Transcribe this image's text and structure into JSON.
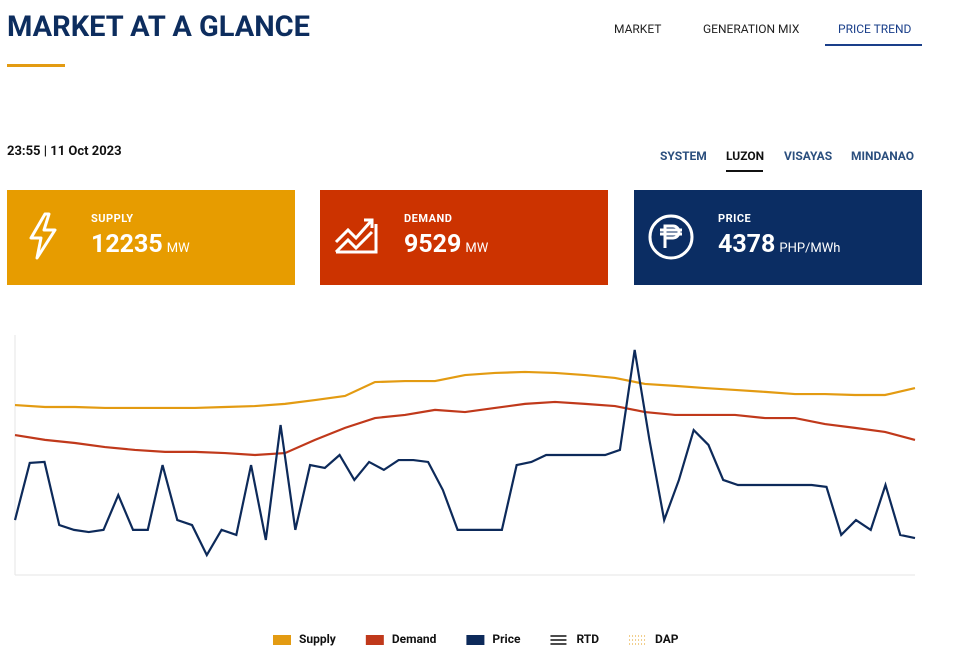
{
  "header": {
    "title": "MARKET AT A GLANCE",
    "tabs": [
      "MARKET",
      "GENERATION MIX",
      "PRICE TREND"
    ]
  },
  "timestamp": "23:55 | 11 Oct 2023",
  "regions": [
    "SYSTEM",
    "LUZON",
    "VISAYAS",
    "MINDANAO"
  ],
  "cards": [
    {
      "label": "SUPPLY",
      "value": 12235,
      "unit": "MW"
    },
    {
      "label": "DEMAND",
      "value": 9529,
      "unit": "MW"
    },
    {
      "label": "PRICE",
      "value": 4378,
      "unit": "PHP/MWh"
    }
  ],
  "chart_data": {
    "type": "line",
    "ylim": [
      0,
      100
    ],
    "series": [
      {
        "name": "Supply",
        "color": "#e39b12",
        "values": [
          70.8,
          70,
          70,
          69.6,
          69.6,
          69.6,
          69.6,
          70,
          70.4,
          71.3,
          72.9,
          74.6,
          80.4,
          80.8,
          80.8,
          83.3,
          84.2,
          84.6,
          84.2,
          83.3,
          82.1,
          79.6,
          78.8,
          77.9,
          77.1,
          76.3,
          75.4,
          75.4,
          75,
          75,
          77.9
        ]
      },
      {
        "name": "Demand",
        "color": "#c0391b",
        "values": [
          58.3,
          56.3,
          55,
          53.3,
          52.1,
          51.3,
          51.3,
          50.8,
          50,
          50.8,
          56.3,
          61.3,
          65.4,
          66.7,
          68.8,
          67.9,
          69.6,
          71.3,
          72.1,
          71.3,
          70.4,
          67.9,
          66.7,
          66.7,
          66.7,
          65.4,
          65.4,
          62.9,
          61.3,
          59.6,
          56.3
        ]
      },
      {
        "name": "Price",
        "color": "#0d2a5a",
        "values": [
          22.9,
          46.7,
          47.1,
          20.8,
          18.8,
          17.9,
          18.8,
          33.3,
          18.8,
          18.8,
          45.8,
          22.9,
          20.8,
          8.3,
          18.8,
          16.7,
          45.8,
          14.6,
          62.5,
          18.8,
          45.8,
          44.6,
          50,
          39.6,
          47.1,
          43.8,
          47.9,
          47.9,
          47.1,
          35.4,
          18.8,
          18.8,
          18.8,
          18.8,
          45.8,
          47.1,
          50,
          50,
          50,
          50,
          50,
          52.1,
          93.8,
          56.3,
          22.9,
          39.6,
          60.4,
          54.2,
          39.6,
          37.5,
          37.5,
          37.5,
          37.5,
          37.5,
          37.5,
          36.7,
          16.7,
          22.9,
          18.8,
          37.5,
          16.7,
          15.4
        ]
      }
    ],
    "extra_legend": [
      "RTD",
      "DAP"
    ]
  }
}
